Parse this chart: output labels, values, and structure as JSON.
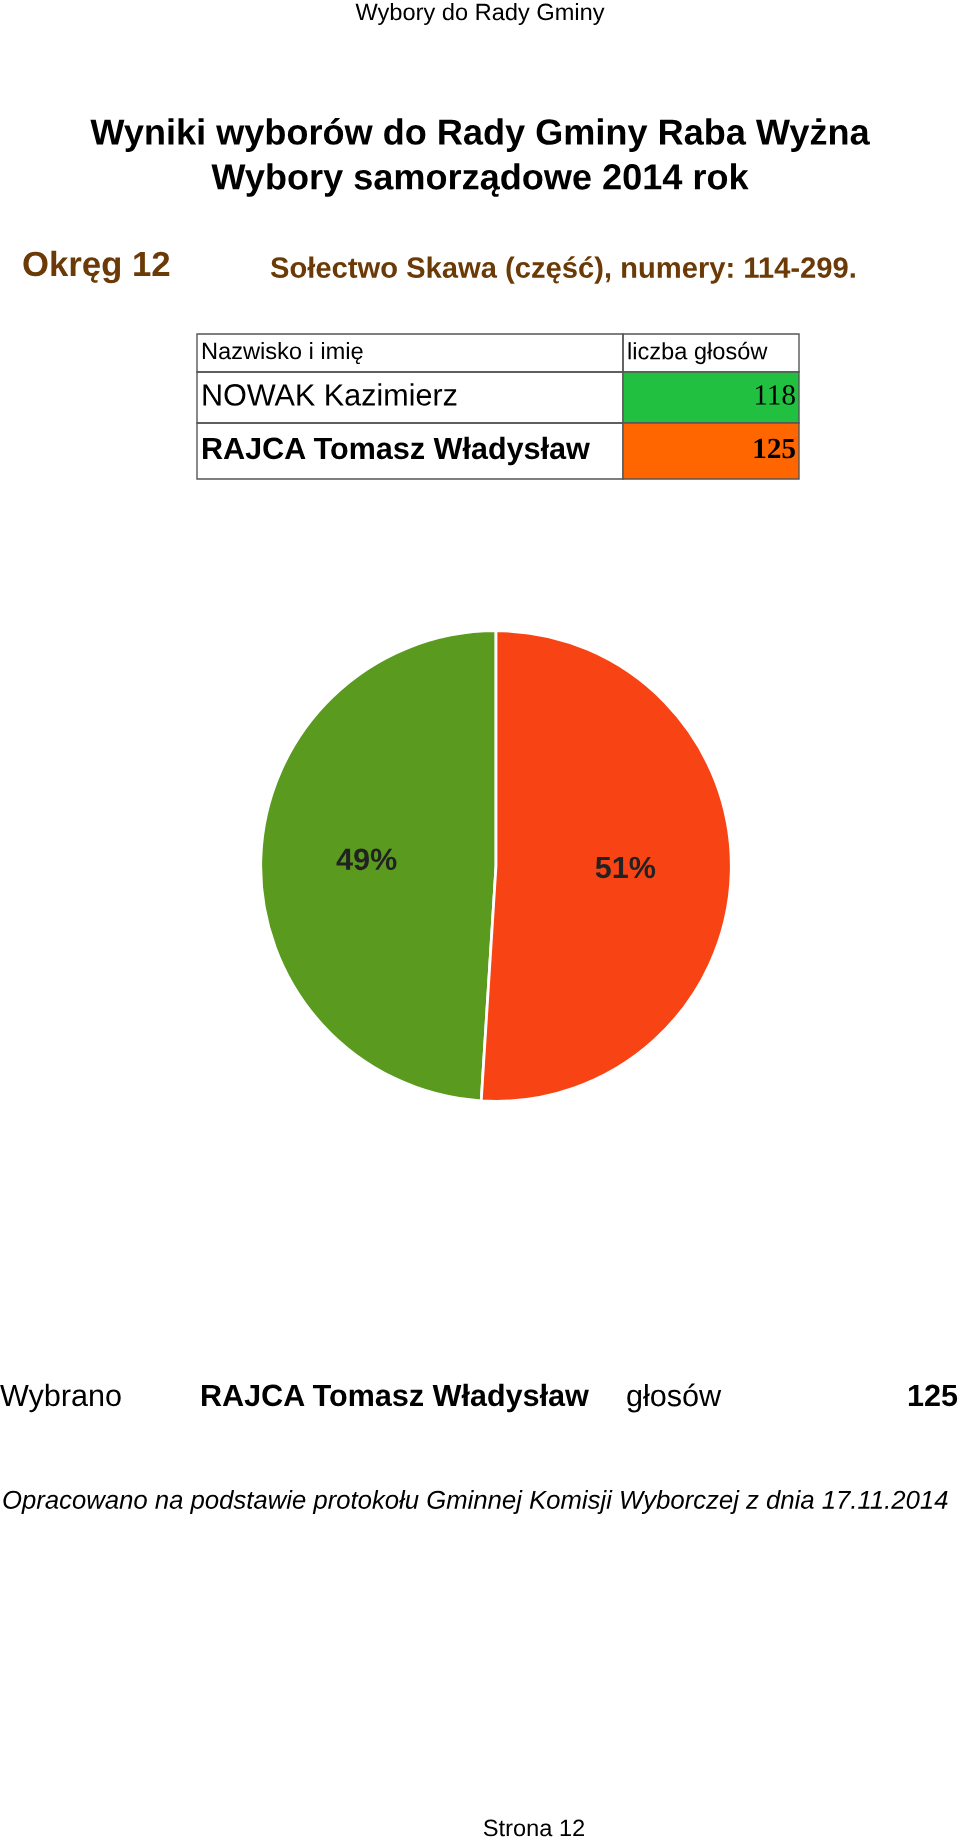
{
  "chart_data": {
    "type": "pie",
    "title": "Wyniki wyborów do Rady Gminy Raba Wyżna",
    "subtitle": "Wybory samorządowe 2014 rok",
    "categories": [
      null,
      null
    ],
    "values": [
      49,
      51
    ],
    "colors": [
      "#5a9a1e",
      "#f84414"
    ],
    "value_labels": [
      "49%",
      "51%"
    ],
    "legend": false,
    "annotations": [
      "Wybory do Rady Gminy",
      "Okręg 12",
      "Sołectwo Skawa (część), numery: 114-299.",
      "Nazwisko i imię",
      "liczba głosów",
      "118",
      "125",
      "NOWAK Kazimierz",
      "RAJCA Tomasz Władysław",
      "Wybrano",
      "RAJCA Tomasz Władysław",
      "głosów",
      "125",
      "Opracowano na podstawie protokołu Gminnej Komisji Wyborczej z dnia 17.11.2014",
      "Strona 12"
    ]
  }
}
